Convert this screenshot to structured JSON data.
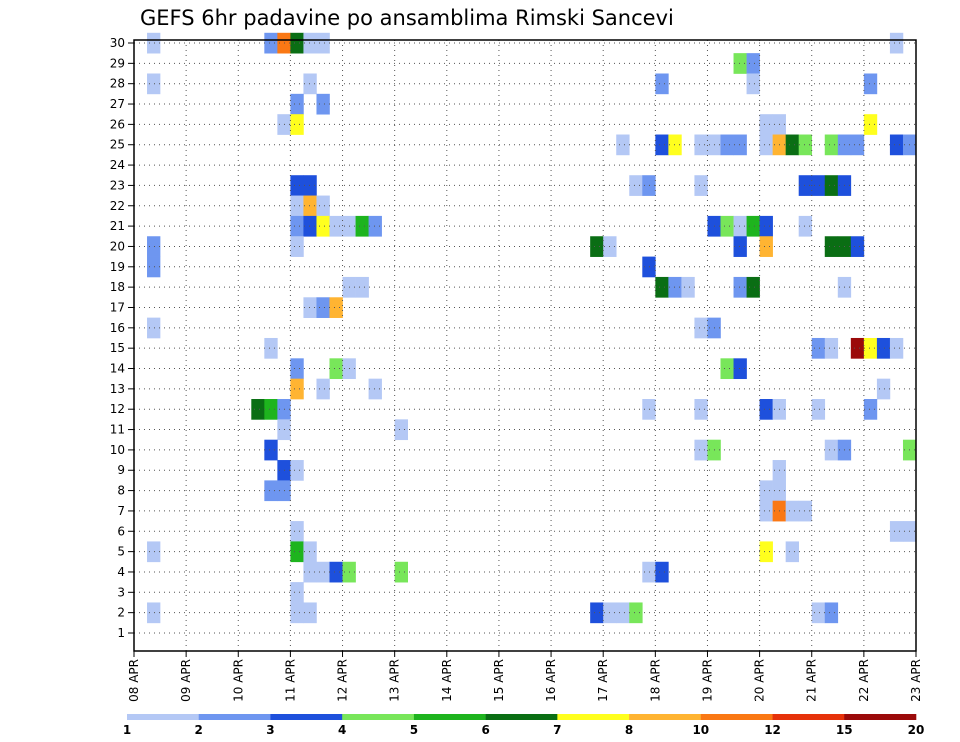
{
  "chart_data": {
    "type": "heatmap",
    "title": "GEFS 6hr padavine po ansamblima Rimski Sancevi",
    "x_start": "08 APR",
    "x_step_hours": 6,
    "x_ticks": [
      "08 APR",
      "09 APR",
      "10 APR",
      "11 APR",
      "12 APR",
      "13 APR",
      "14 APR",
      "15 APR",
      "16 APR",
      "17 APR",
      "18 APR",
      "19 APR",
      "20 APR",
      "21 APR",
      "22 APR",
      "23 APR"
    ],
    "y_ticks": [
      1,
      2,
      3,
      4,
      5,
      6,
      7,
      8,
      9,
      10,
      11,
      12,
      13,
      14,
      15,
      16,
      17,
      18,
      19,
      20,
      21,
      22,
      23,
      24,
      25,
      26,
      27,
      28,
      29,
      30
    ],
    "ylim": [
      1,
      30
    ],
    "grid": true,
    "colorbar": {
      "labels": [
        "1",
        "2",
        "3",
        "4",
        "5",
        "6",
        "7",
        "8",
        "10",
        "12",
        "15",
        "20"
      ],
      "colors": [
        "#b4c8f5",
        "#6e96f0",
        "#1e50dc",
        "#78e65a",
        "#1eb41e",
        "#0a6e14",
        "#ffff1e",
        "#ffb432",
        "#fa7814",
        "#e6320a",
        "#9b0a0a"
      ]
    },
    "classes": {
      "1": "1-2",
      "2": "2-3",
      "3": "3-4",
      "4": "4-5",
      "5": "5-6",
      "6": "6-7",
      "7": "7-8",
      "8": "8-10",
      "9": "10-12",
      "10": "12-15",
      "11": "15-20"
    },
    "cells": [
      [
        1,
        30,
        1
      ],
      [
        10,
        30,
        2
      ],
      [
        11,
        30,
        9
      ],
      [
        12,
        30,
        6
      ],
      [
        13,
        30,
        1
      ],
      [
        14,
        30,
        1
      ],
      [
        58,
        30,
        1
      ],
      [
        46,
        29,
        4
      ],
      [
        47,
        29,
        2
      ],
      [
        1,
        28,
        1
      ],
      [
        13,
        28,
        1
      ],
      [
        40,
        28,
        2
      ],
      [
        47,
        28,
        1
      ],
      [
        56,
        28,
        2
      ],
      [
        12,
        27,
        2
      ],
      [
        14,
        27,
        2
      ],
      [
        11,
        26,
        1
      ],
      [
        12,
        26,
        7
      ],
      [
        48,
        26,
        1
      ],
      [
        49,
        26,
        1
      ],
      [
        56,
        26,
        7
      ],
      [
        37,
        25,
        1
      ],
      [
        40,
        25,
        3
      ],
      [
        41,
        25,
        7
      ],
      [
        43,
        25,
        1
      ],
      [
        44,
        25,
        1
      ],
      [
        45,
        25,
        2
      ],
      [
        46,
        25,
        2
      ],
      [
        48,
        25,
        1
      ],
      [
        49,
        25,
        8
      ],
      [
        50,
        25,
        6
      ],
      [
        51,
        25,
        4
      ],
      [
        53,
        25,
        4
      ],
      [
        54,
        25,
        2
      ],
      [
        55,
        25,
        2
      ],
      [
        58,
        25,
        3
      ],
      [
        59,
        25,
        2
      ],
      [
        12,
        23,
        3
      ],
      [
        13,
        23,
        3
      ],
      [
        38,
        23,
        1
      ],
      [
        39,
        23,
        2
      ],
      [
        43,
        23,
        1
      ],
      [
        51,
        23,
        3
      ],
      [
        52,
        23,
        3
      ],
      [
        53,
        23,
        6
      ],
      [
        54,
        23,
        3
      ],
      [
        12,
        22,
        1
      ],
      [
        13,
        22,
        8
      ],
      [
        14,
        22,
        1
      ],
      [
        12,
        21,
        2
      ],
      [
        13,
        21,
        3
      ],
      [
        14,
        21,
        7
      ],
      [
        15,
        21,
        1
      ],
      [
        16,
        21,
        1
      ],
      [
        17,
        21,
        5
      ],
      [
        18,
        21,
        2
      ],
      [
        44,
        21,
        3
      ],
      [
        45,
        21,
        4
      ],
      [
        46,
        21,
        1
      ],
      [
        47,
        21,
        5
      ],
      [
        48,
        21,
        3
      ],
      [
        51,
        21,
        1
      ],
      [
        1,
        20,
        2
      ],
      [
        12,
        20,
        1
      ],
      [
        35,
        20,
        6
      ],
      [
        36,
        20,
        1
      ],
      [
        46,
        20,
        3
      ],
      [
        48,
        20,
        8
      ],
      [
        53,
        20,
        6
      ],
      [
        54,
        20,
        6
      ],
      [
        55,
        20,
        3
      ],
      [
        1,
        19,
        2
      ],
      [
        39,
        19,
        3
      ],
      [
        16,
        18,
        1
      ],
      [
        17,
        18,
        1
      ],
      [
        40,
        18,
        6
      ],
      [
        41,
        18,
        2
      ],
      [
        42,
        18,
        1
      ],
      [
        46,
        18,
        2
      ],
      [
        47,
        18,
        6
      ],
      [
        54,
        18,
        1
      ],
      [
        13,
        17,
        1
      ],
      [
        14,
        17,
        2
      ],
      [
        15,
        17,
        8
      ],
      [
        1,
        16,
        1
      ],
      [
        43,
        16,
        1
      ],
      [
        44,
        16,
        2
      ],
      [
        10,
        15,
        1
      ],
      [
        52,
        15,
        2
      ],
      [
        53,
        15,
        1
      ],
      [
        55,
        15,
        11
      ],
      [
        56,
        15,
        7
      ],
      [
        57,
        15,
        3
      ],
      [
        58,
        15,
        1
      ],
      [
        12,
        14,
        2
      ],
      [
        15,
        14,
        4
      ],
      [
        16,
        14,
        1
      ],
      [
        45,
        14,
        4
      ],
      [
        46,
        14,
        3
      ],
      [
        12,
        13,
        8
      ],
      [
        14,
        13,
        1
      ],
      [
        18,
        13,
        1
      ],
      [
        57,
        13,
        1
      ],
      [
        9,
        12,
        6
      ],
      [
        10,
        12,
        5
      ],
      [
        11,
        12,
        2
      ],
      [
        39,
        12,
        1
      ],
      [
        43,
        12,
        1
      ],
      [
        48,
        12,
        3
      ],
      [
        49,
        12,
        1
      ],
      [
        52,
        12,
        1
      ],
      [
        56,
        12,
        2
      ],
      [
        11,
        11,
        1
      ],
      [
        20,
        11,
        1
      ],
      [
        10,
        10,
        3
      ],
      [
        43,
        10,
        1
      ],
      [
        44,
        10,
        4
      ],
      [
        53,
        10,
        1
      ],
      [
        54,
        10,
        2
      ],
      [
        59,
        10,
        4
      ],
      [
        11,
        9,
        3
      ],
      [
        12,
        9,
        1
      ],
      [
        49,
        9,
        1
      ],
      [
        10,
        8,
        2
      ],
      [
        11,
        8,
        2
      ],
      [
        48,
        8,
        1
      ],
      [
        49,
        8,
        1
      ],
      [
        48,
        7,
        1
      ],
      [
        49,
        7,
        9
      ],
      [
        50,
        7,
        1
      ],
      [
        51,
        7,
        1
      ],
      [
        12,
        6,
        1
      ],
      [
        58,
        6,
        1
      ],
      [
        59,
        6,
        1
      ],
      [
        1,
        5,
        1
      ],
      [
        12,
        5,
        5
      ],
      [
        13,
        5,
        1
      ],
      [
        48,
        5,
        7
      ],
      [
        50,
        5,
        1
      ],
      [
        13,
        4,
        1
      ],
      [
        14,
        4,
        1
      ],
      [
        15,
        4,
        3
      ],
      [
        16,
        4,
        4
      ],
      [
        20,
        4,
        4
      ],
      [
        39,
        4,
        1
      ],
      [
        40,
        4,
        3
      ],
      [
        12,
        3,
        1
      ],
      [
        1,
        2,
        1
      ],
      [
        12,
        2,
        1
      ],
      [
        13,
        2,
        1
      ],
      [
        35,
        2,
        3
      ],
      [
        36,
        2,
        1
      ],
      [
        37,
        2,
        1
      ],
      [
        38,
        2,
        4
      ],
      [
        52,
        2,
        1
      ],
      [
        53,
        2,
        2
      ]
    ]
  }
}
